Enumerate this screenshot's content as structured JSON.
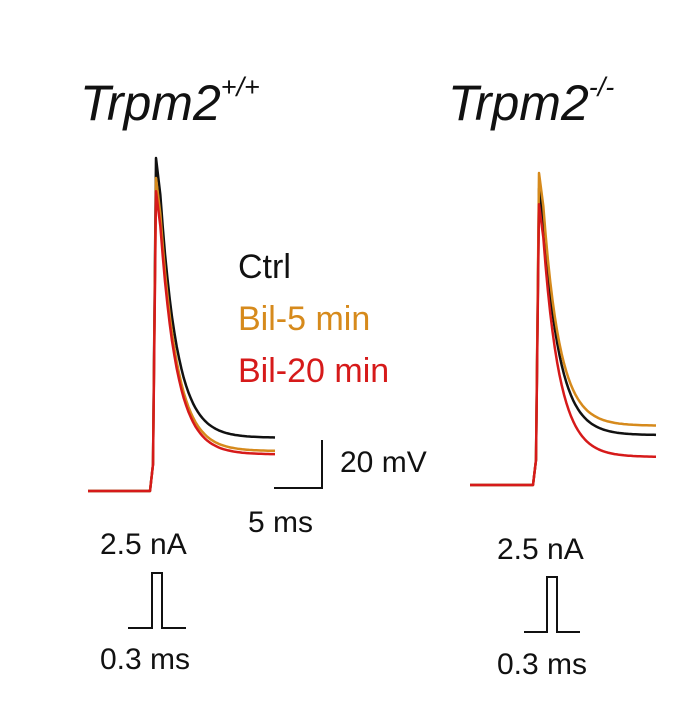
{
  "chart_data": {
    "type": "line",
    "panels": [
      {
        "title_base": "Trpm2",
        "title_superscript": "+/+",
        "series": [
          {
            "name": "Ctrl",
            "color": "#111111",
            "peak": 1.0,
            "plateau": 0.16
          },
          {
            "name": "Bil-5 min",
            "color": "#d68a1c",
            "peak": 0.94,
            "plateau": 0.12
          },
          {
            "name": "Bil-20 min",
            "color": "#d61a1a",
            "peak": 0.9,
            "plateau": 0.11
          }
        ],
        "stimulus": {
          "amplitude": "2.5 nA",
          "duration": "0.3 ms"
        }
      },
      {
        "title_base": "Trpm2",
        "title_superscript": "-/-",
        "series": [
          {
            "name": "Ctrl",
            "color": "#111111",
            "peak": 0.95,
            "plateau": 0.16
          },
          {
            "name": "Bil-5 min",
            "color": "#d68a1c",
            "peak": 1.0,
            "plateau": 0.19
          },
          {
            "name": "Bil-20 min",
            "color": "#d61a1a",
            "peak": 0.9,
            "plateau": 0.09
          }
        ],
        "stimulus": {
          "amplitude": "2.5 nA",
          "duration": "0.3 ms"
        }
      }
    ],
    "legend": [
      {
        "label": "Ctrl",
        "color": "#111111"
      },
      {
        "label": "Bil-5 min",
        "color": "#d68a1c"
      },
      {
        "label": "Bil-20 min",
        "color": "#d61a1a"
      }
    ],
    "legend_placement": "center",
    "scale_bar": {
      "voltage": "20 mV",
      "time": "5 ms"
    },
    "grid": false,
    "axes": false
  }
}
